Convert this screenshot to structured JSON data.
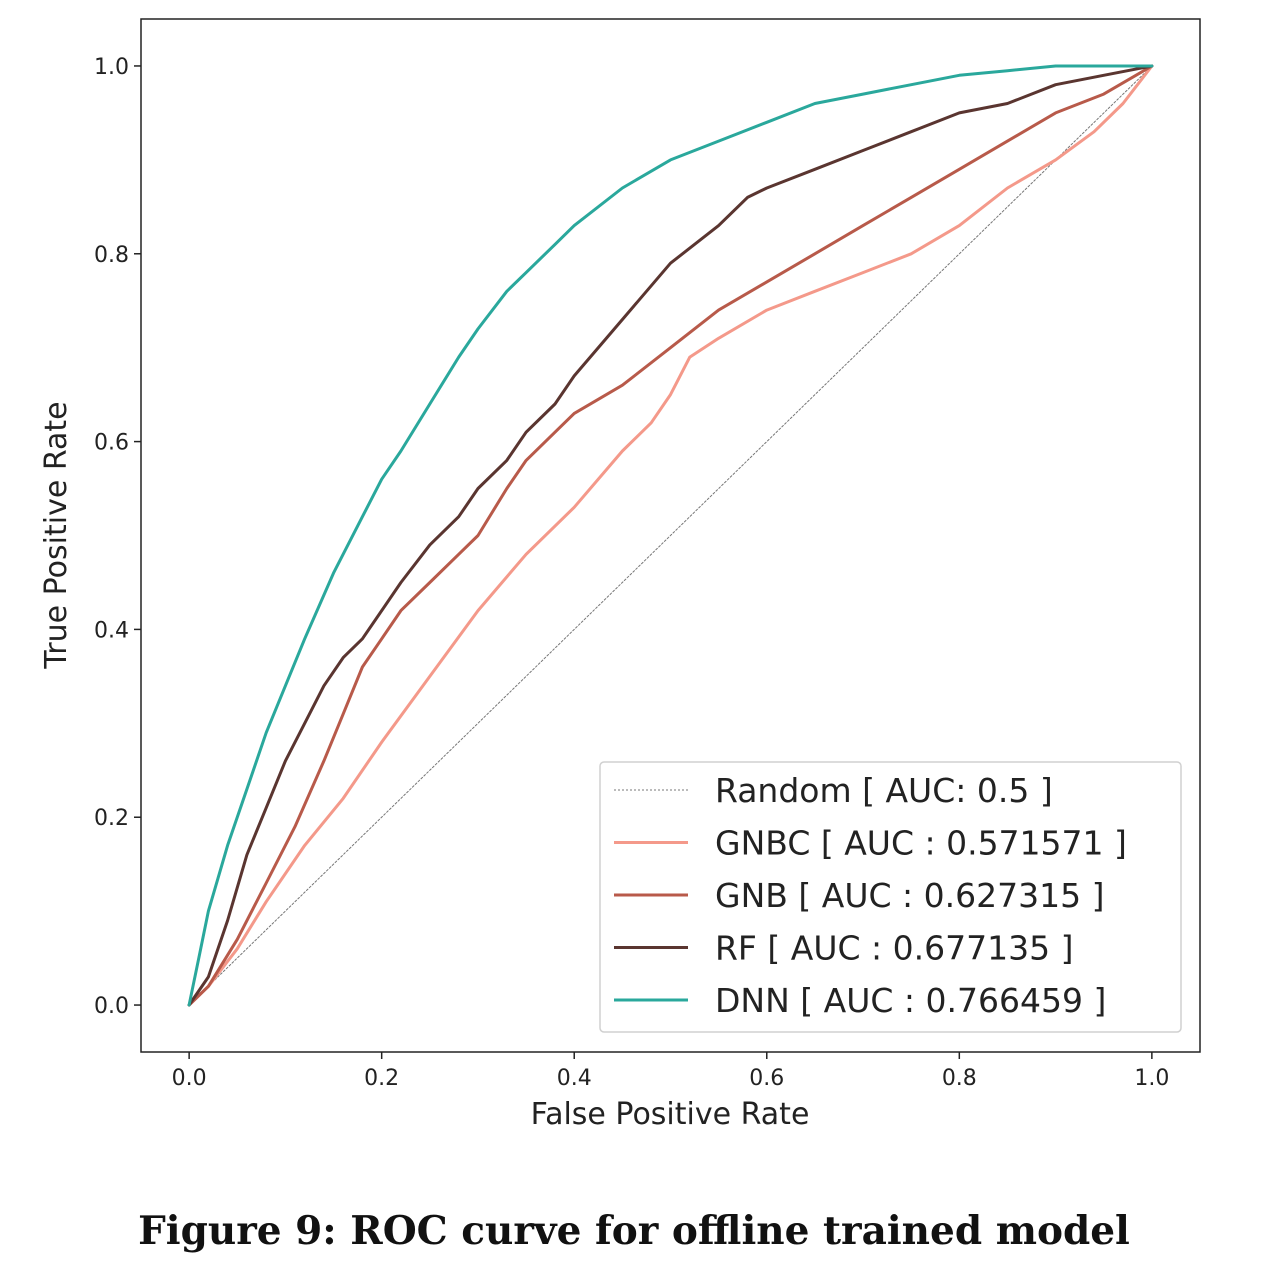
{
  "caption": "Figure 9: ROC curve for offline trained model",
  "chart_data": {
    "type": "line",
    "title": "",
    "xlabel": "False Positive Rate",
    "ylabel": "True Positive Rate",
    "xlim": [
      -0.05,
      1.05
    ],
    "ylim": [
      -0.05,
      1.05
    ],
    "xticks": [
      "0.0",
      "0.2",
      "0.4",
      "0.6",
      "0.8",
      "1.0"
    ],
    "yticks": [
      "0.0",
      "0.2",
      "0.4",
      "0.6",
      "0.8",
      "1.0"
    ],
    "grid": false,
    "legend_position": "lower-right",
    "series": [
      {
        "name": "Random [ AUC: 0.5 ]",
        "color": "#777777",
        "style": "dashed",
        "x": [
          0,
          1
        ],
        "y": [
          0,
          1
        ]
      },
      {
        "name": "GNBC [ AUC : 0.571571 ]",
        "color": "#f4998a",
        "style": "solid",
        "x": [
          0,
          0.02,
          0.05,
          0.08,
          0.12,
          0.16,
          0.2,
          0.25,
          0.3,
          0.35,
          0.4,
          0.45,
          0.48,
          0.5,
          0.52,
          0.55,
          0.6,
          0.65,
          0.7,
          0.75,
          0.8,
          0.85,
          0.9,
          0.94,
          0.97,
          1.0
        ],
        "y": [
          0,
          0.02,
          0.06,
          0.11,
          0.17,
          0.22,
          0.28,
          0.35,
          0.42,
          0.48,
          0.53,
          0.59,
          0.62,
          0.65,
          0.69,
          0.71,
          0.74,
          0.76,
          0.78,
          0.8,
          0.83,
          0.87,
          0.9,
          0.93,
          0.96,
          1.0
        ]
      },
      {
        "name": "GNB [ AUC : 0.627315 ]",
        "color": "#b85a4a",
        "style": "solid",
        "x": [
          0,
          0.02,
          0.05,
          0.08,
          0.11,
          0.14,
          0.16,
          0.18,
          0.2,
          0.22,
          0.25,
          0.28,
          0.3,
          0.33,
          0.35,
          0.38,
          0.4,
          0.45,
          0.5,
          0.55,
          0.6,
          0.65,
          0.7,
          0.75,
          0.8,
          0.85,
          0.9,
          0.95,
          1.0
        ],
        "y": [
          0,
          0.02,
          0.07,
          0.13,
          0.19,
          0.26,
          0.31,
          0.36,
          0.39,
          0.42,
          0.45,
          0.48,
          0.5,
          0.55,
          0.58,
          0.61,
          0.63,
          0.66,
          0.7,
          0.74,
          0.77,
          0.8,
          0.83,
          0.86,
          0.89,
          0.92,
          0.95,
          0.97,
          1.0
        ]
      },
      {
        "name": "RF [ AUC : 0.677135 ]",
        "color": "#5a3530",
        "style": "solid",
        "x": [
          0,
          0.02,
          0.04,
          0.06,
          0.08,
          0.1,
          0.12,
          0.14,
          0.16,
          0.18,
          0.2,
          0.22,
          0.25,
          0.28,
          0.3,
          0.33,
          0.35,
          0.38,
          0.4,
          0.45,
          0.5,
          0.55,
          0.58,
          0.6,
          0.65,
          0.7,
          0.75,
          0.8,
          0.85,
          0.9,
          0.95,
          1.0
        ],
        "y": [
          0,
          0.03,
          0.09,
          0.16,
          0.21,
          0.26,
          0.3,
          0.34,
          0.37,
          0.39,
          0.42,
          0.45,
          0.49,
          0.52,
          0.55,
          0.58,
          0.61,
          0.64,
          0.67,
          0.73,
          0.79,
          0.83,
          0.86,
          0.87,
          0.89,
          0.91,
          0.93,
          0.95,
          0.96,
          0.98,
          0.99,
          1.0
        ]
      },
      {
        "name": "DNN [ AUC : 0.766459 ]",
        "color": "#2aa89c",
        "style": "solid",
        "x": [
          0,
          0.01,
          0.02,
          0.04,
          0.06,
          0.08,
          0.1,
          0.12,
          0.15,
          0.18,
          0.2,
          0.22,
          0.25,
          0.28,
          0.3,
          0.33,
          0.35,
          0.38,
          0.4,
          0.45,
          0.5,
          0.55,
          0.6,
          0.65,
          0.7,
          0.75,
          0.8,
          0.85,
          0.9,
          0.95,
          1.0
        ],
        "y": [
          0,
          0.05,
          0.1,
          0.17,
          0.23,
          0.29,
          0.34,
          0.39,
          0.46,
          0.52,
          0.56,
          0.59,
          0.64,
          0.69,
          0.72,
          0.76,
          0.78,
          0.81,
          0.83,
          0.87,
          0.9,
          0.92,
          0.94,
          0.96,
          0.97,
          0.98,
          0.99,
          0.995,
          1.0,
          1.0,
          1.0
        ]
      }
    ]
  }
}
